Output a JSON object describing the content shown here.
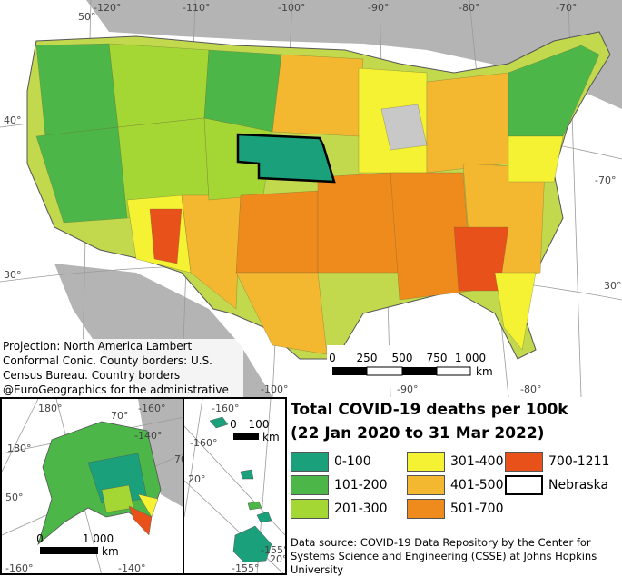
{
  "legend": {
    "title_line1": "Total COVID-19 deaths per 100k",
    "title_line2": "(22 Jan 2020 to 31 Mar 2022)",
    "classes": [
      {
        "label": "0-100",
        "color": "#1aa07a"
      },
      {
        "label": "101-200",
        "color": "#4cb748"
      },
      {
        "label": "201-300",
        "color": "#a4d734"
      },
      {
        "label": "301-400",
        "color": "#f5f233"
      },
      {
        "label": "401-500",
        "color": "#f4b830"
      },
      {
        "label": "501-700",
        "color": "#ef8a1d"
      },
      {
        "label": "700-1211",
        "color": "#e8521a"
      },
      {
        "label": "Nebraska",
        "color": "#ffffff"
      }
    ]
  },
  "main_map": {
    "graticule": {
      "lon_top": [
        "-120°",
        "-110°",
        "-100°",
        "-90°",
        "-80°",
        "-70°"
      ],
      "lon_top_left": "50°",
      "lat_left": [
        "40°",
        "30°"
      ],
      "lat_right": [
        "-70°",
        "30°"
      ],
      "lon_bottom": [
        "-100°",
        "-90°",
        "-80°"
      ]
    },
    "scale": {
      "ticks": [
        "0",
        "250",
        "500",
        "750",
        "1 000"
      ],
      "unit": "km"
    },
    "highlight_label": "Nebraska"
  },
  "alaska_inset": {
    "labels": [
      "180°",
      "-160°",
      "180°",
      "70°",
      "-140°",
      "70°",
      "50°",
      "-160°",
      "-140°"
    ],
    "scale": {
      "ticks": [
        "0",
        "1 000"
      ],
      "unit": "km"
    }
  },
  "hawaii_inset": {
    "labels": [
      "-160°",
      "-160°",
      "20°",
      "-155°",
      "-155°",
      "20°"
    ],
    "scale": {
      "ticks": [
        "0",
        "100"
      ],
      "unit": "km"
    }
  },
  "notes": {
    "projection": "Projection: North America Lambert Conformal Conic. County borders: U.S. Census Bureau. Country borders @EuroGeographics for the administrative boundaries",
    "source": "Data source: COVID-19 Data Repository by the Center for Systems Science and Engineering (CSSE) at Johns Hopkins University"
  }
}
